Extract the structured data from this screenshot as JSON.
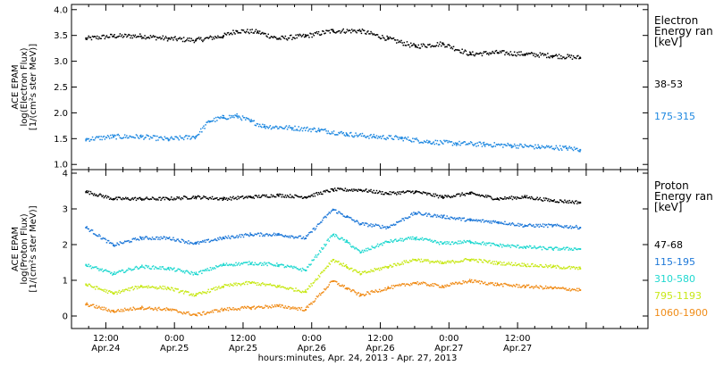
{
  "chart_data": [
    {
      "type": "scatter",
      "panel": "electron",
      "ylabel_lines": [
        "ACE EPAM",
        "log(Electron Flux)",
        "[1/(cm²s ster MeV)]"
      ],
      "ylim": [
        0.9,
        4.1
      ],
      "yticks": [
        1.0,
        1.5,
        2.0,
        2.5,
        3.0,
        3.5,
        4.0
      ],
      "ytick_labels": [
        "1.0",
        "1.5",
        "2.0",
        "2.5",
        "3.0",
        "3.5",
        "4.0"
      ],
      "legend_title_lines": [
        "Electron",
        "Energy ran",
        "[keV]"
      ],
      "series": [
        {
          "name": "38-53",
          "color": "#000000",
          "x": [
            0.1,
            0.3,
            0.5,
            0.7,
            0.9,
            1.1,
            1.2,
            1.35,
            1.5,
            1.7,
            1.9,
            2.1,
            2.3,
            2.5,
            2.7,
            2.9,
            3.1,
            3.3,
            3.5,
            3.7
          ],
          "y": [
            3.45,
            3.5,
            3.5,
            3.45,
            3.42,
            3.5,
            3.6,
            3.58,
            3.45,
            3.5,
            3.6,
            3.6,
            3.45,
            3.3,
            3.35,
            3.15,
            3.18,
            3.15,
            3.12,
            3.08
          ]
        },
        {
          "name": "175-315",
          "color": "#1e88e0",
          "x": [
            0.1,
            0.3,
            0.5,
            0.7,
            0.9,
            1.0,
            1.1,
            1.2,
            1.3,
            1.4,
            1.6,
            1.8,
            2.0,
            2.2,
            2.4,
            2.6,
            2.8,
            3.0,
            3.2,
            3.4,
            3.6,
            3.7
          ],
          "y": [
            1.5,
            1.55,
            1.55,
            1.5,
            1.55,
            1.85,
            1.92,
            1.95,
            1.85,
            1.75,
            1.72,
            1.68,
            1.6,
            1.55,
            1.52,
            1.45,
            1.42,
            1.4,
            1.38,
            1.35,
            1.33,
            1.3
          ]
        }
      ]
    },
    {
      "type": "scatter",
      "panel": "proton",
      "ylabel_lines": [
        "ACE EPAM",
        "log(Proton Flux)",
        "[1/(cm²s ster MeV)]"
      ],
      "ylim": [
        -0.35,
        4.1
      ],
      "yticks": [
        0,
        1,
        2,
        3,
        4
      ],
      "ytick_labels": [
        "0",
        "1",
        "2",
        "3",
        "4"
      ],
      "legend_title_lines": [
        "Proton",
        "Energy ran",
        "[keV]"
      ],
      "series": [
        {
          "name": "47-68",
          "color": "#000000",
          "x": [
            0.1,
            0.3,
            0.5,
            0.7,
            0.9,
            1.1,
            1.3,
            1.5,
            1.7,
            1.9,
            2.1,
            2.3,
            2.5,
            2.7,
            2.9,
            3.1,
            3.3,
            3.5,
            3.7
          ],
          "y": [
            3.5,
            3.3,
            3.3,
            3.3,
            3.35,
            3.3,
            3.35,
            3.4,
            3.35,
            3.55,
            3.55,
            3.45,
            3.5,
            3.35,
            3.45,
            3.3,
            3.35,
            3.25,
            3.2
          ]
        },
        {
          "name": "115-195",
          "color": "#1e78d8",
          "x": [
            0.1,
            0.3,
            0.5,
            0.7,
            0.9,
            1.1,
            1.3,
            1.5,
            1.7,
            1.9,
            2.0,
            2.1,
            2.3,
            2.5,
            2.7,
            2.9,
            3.1,
            3.3,
            3.5,
            3.7
          ],
          "y": [
            2.5,
            2.0,
            2.2,
            2.2,
            2.05,
            2.2,
            2.3,
            2.3,
            2.2,
            3.0,
            2.8,
            2.6,
            2.5,
            2.9,
            2.8,
            2.7,
            2.65,
            2.55,
            2.55,
            2.5
          ]
        },
        {
          "name": "310-580",
          "color": "#20d8d0",
          "x": [
            0.1,
            0.3,
            0.5,
            0.7,
            0.9,
            1.1,
            1.3,
            1.5,
            1.7,
            1.9,
            2.0,
            2.1,
            2.3,
            2.5,
            2.7,
            2.9,
            3.1,
            3.3,
            3.5,
            3.7
          ],
          "y": [
            1.45,
            1.2,
            1.4,
            1.35,
            1.2,
            1.45,
            1.5,
            1.45,
            1.3,
            2.3,
            2.1,
            1.8,
            2.1,
            2.2,
            2.05,
            2.1,
            2.0,
            1.95,
            1.9,
            1.9
          ]
        },
        {
          "name": "795-1193",
          "color": "#c8e818",
          "x": [
            0.1,
            0.3,
            0.5,
            0.7,
            0.9,
            1.1,
            1.3,
            1.5,
            1.7,
            1.9,
            2.0,
            2.1,
            2.3,
            2.5,
            2.7,
            2.9,
            3.1,
            3.3,
            3.5,
            3.7
          ],
          "y": [
            0.9,
            0.65,
            0.85,
            0.8,
            0.6,
            0.85,
            0.95,
            0.85,
            0.7,
            1.6,
            1.4,
            1.2,
            1.4,
            1.6,
            1.5,
            1.6,
            1.5,
            1.45,
            1.4,
            1.35
          ]
        },
        {
          "name": "1060-1900",
          "color": "#f08c18",
          "x": [
            0.1,
            0.3,
            0.5,
            0.7,
            0.9,
            1.1,
            1.3,
            1.5,
            1.7,
            1.9,
            2.0,
            2.1,
            2.3,
            2.5,
            2.7,
            2.9,
            3.1,
            3.3,
            3.5,
            3.7
          ],
          "y": [
            0.35,
            0.15,
            0.25,
            0.2,
            0.05,
            0.2,
            0.25,
            0.3,
            0.2,
            1.0,
            0.8,
            0.6,
            0.8,
            0.95,
            0.85,
            1.0,
            0.9,
            0.85,
            0.8,
            0.75
          ]
        }
      ]
    }
  ],
  "xaxis": {
    "xlim": [
      0,
      4.2
    ],
    "ticks": [
      {
        "x": 0.25,
        "time": "12:00",
        "date": "Apr.24"
      },
      {
        "x": 0.75,
        "time": "0:00",
        "date": "Apr.25"
      },
      {
        "x": 1.25,
        "time": "12:00",
        "date": "Apr.25"
      },
      {
        "x": 1.75,
        "time": "0:00",
        "date": "Apr.26"
      },
      {
        "x": 2.25,
        "time": "12:00",
        "date": "Apr.26"
      },
      {
        "x": 2.75,
        "time": "0:00",
        "date": "Apr.27"
      },
      {
        "x": 3.25,
        "time": "12:00",
        "date": "Apr.27"
      }
    ],
    "minor_step": 0.125,
    "label": "hours:minutes, Apr. 24, 2013 - Apr. 27, 2013"
  }
}
